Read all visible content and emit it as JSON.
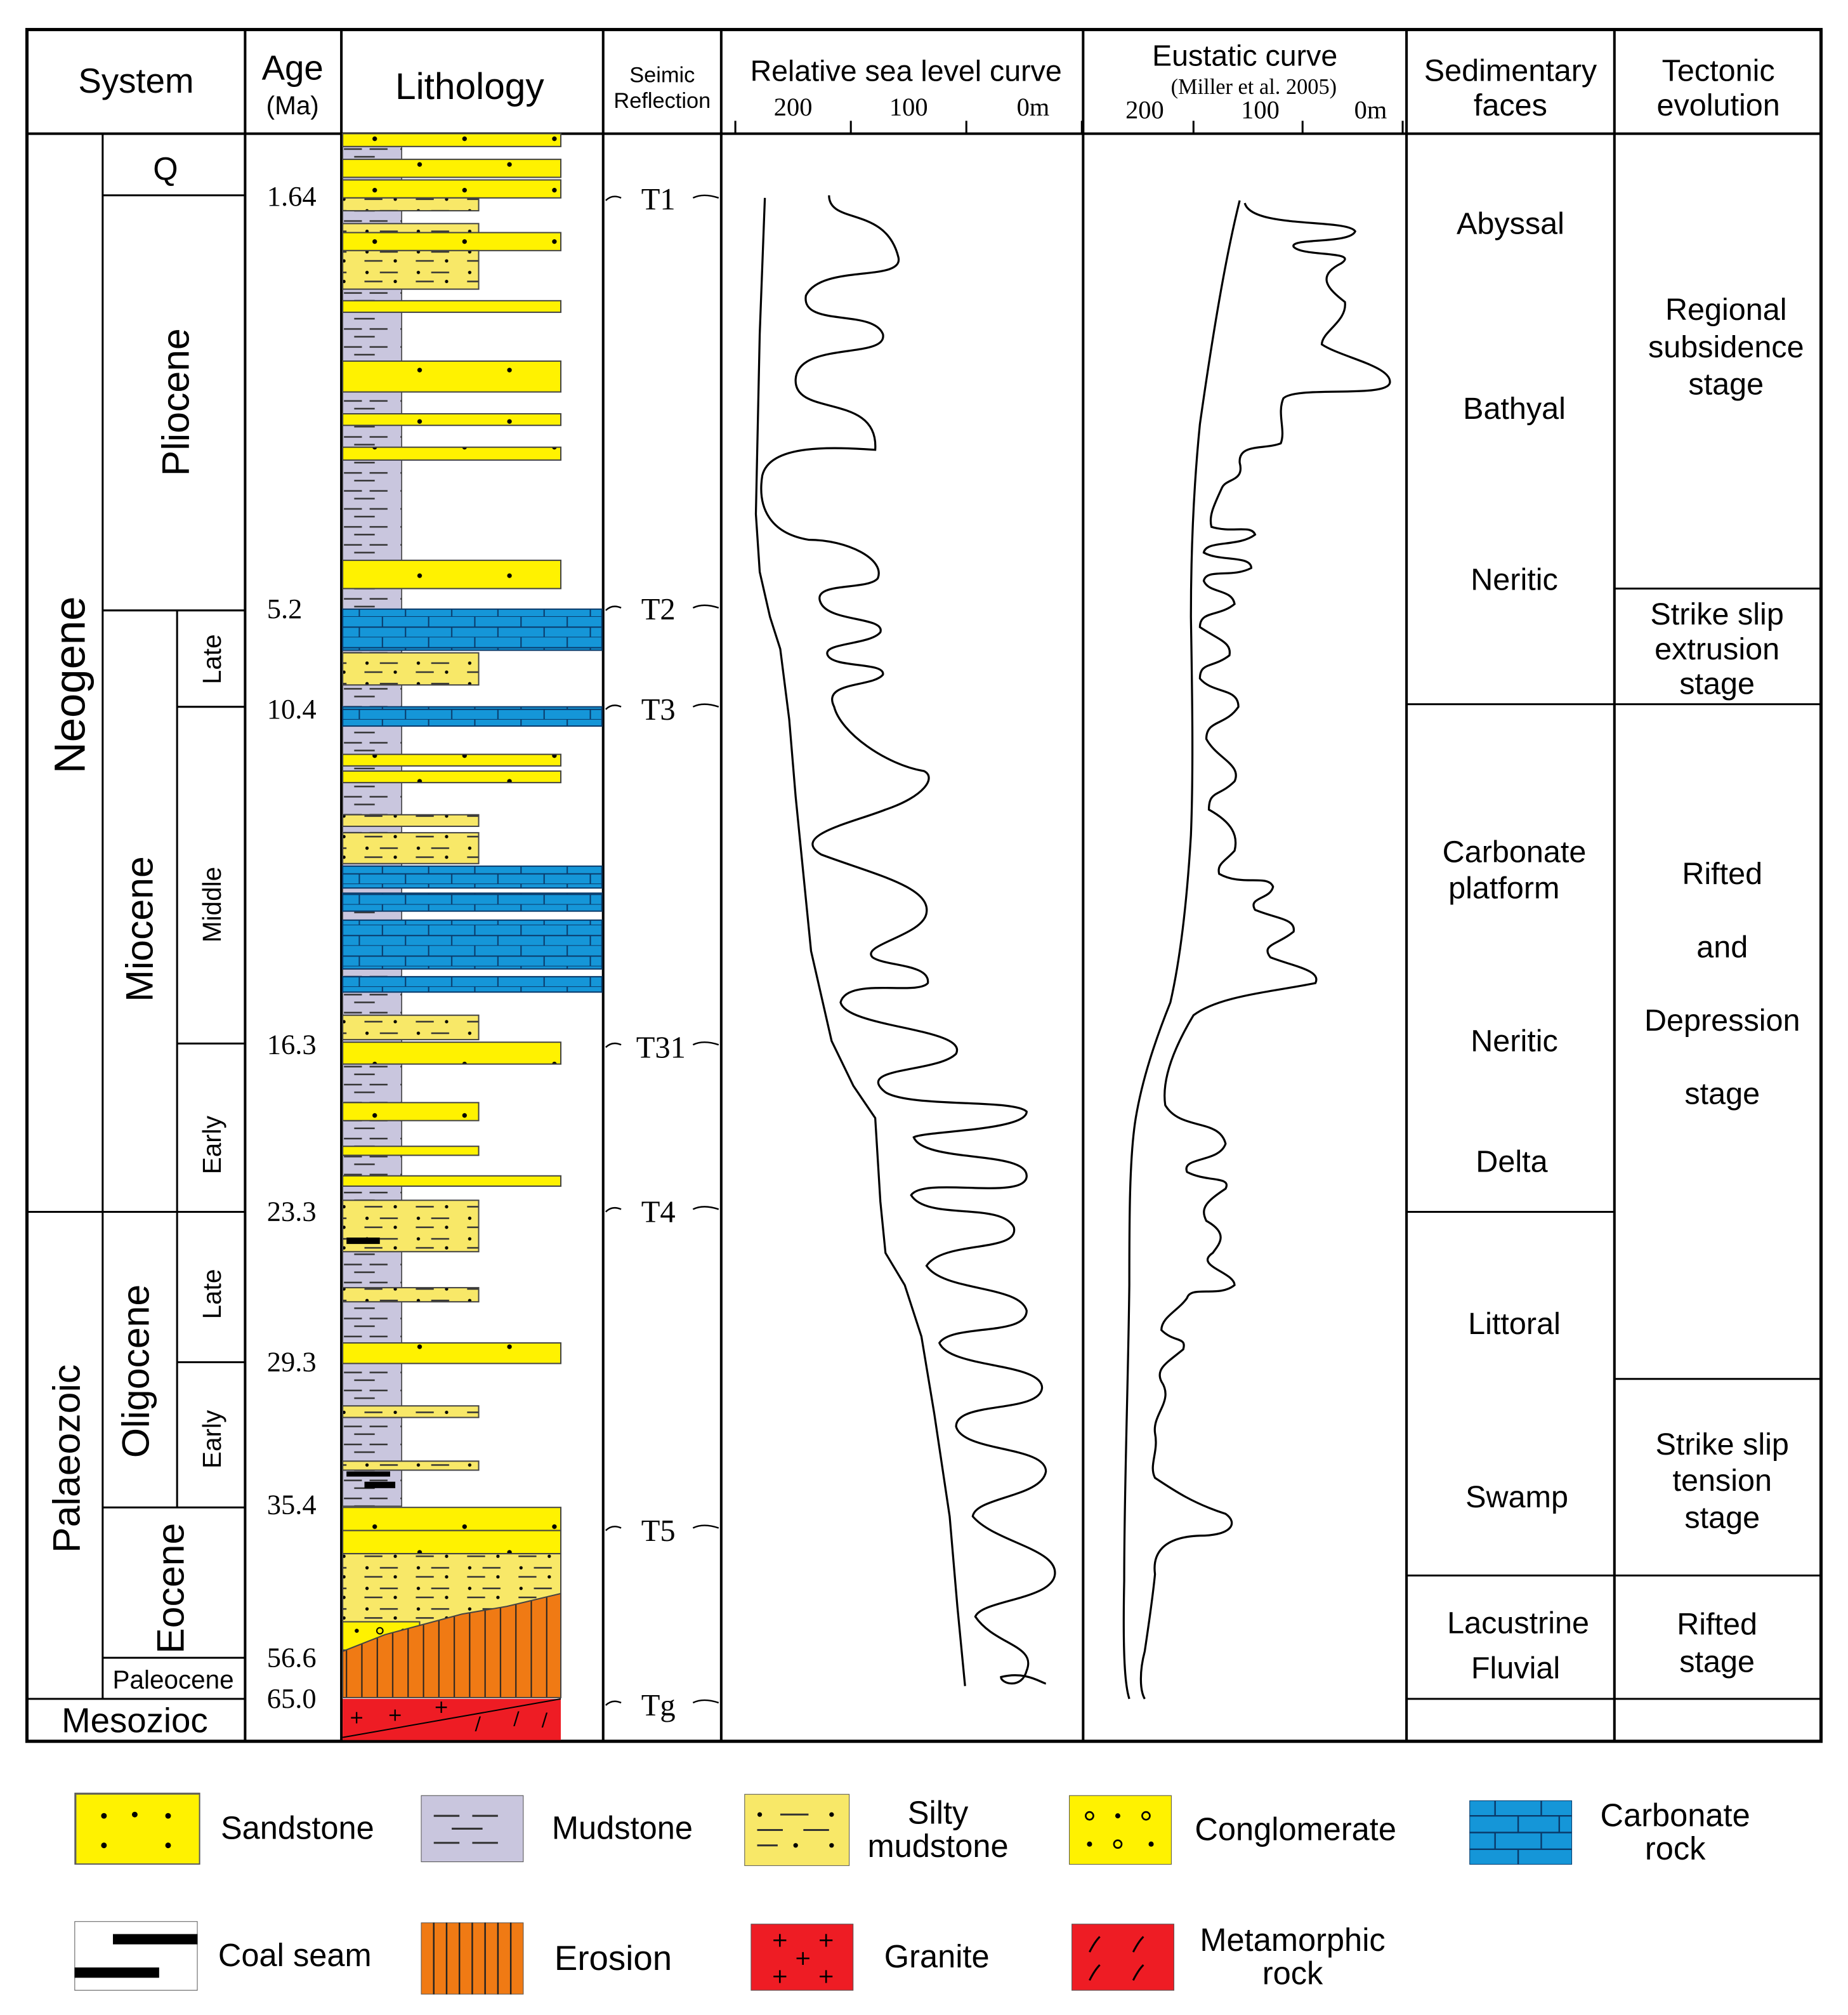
{
  "headers": {
    "system": "System",
    "age_line1": "Age",
    "age_line2": "(Ma)",
    "lithology": "Lithology",
    "seismic_line1": "Seimic",
    "seismic_line2": "Reflection",
    "relative_sea_level": "Relative sea level curve",
    "eustatic_line1": "Eustatic curve",
    "eustatic_line2": "(Miller et al.  2005)",
    "sedimentary_line1": "Sedimentary",
    "sedimentary_line2": "faces",
    "tectonic_line1": "Tectonic",
    "tectonic_line2": "evolution"
  },
  "scale_ticks": {
    "relative": [
      "200",
      "100",
      "0m"
    ],
    "eustatic": [
      "200",
      "100",
      "0m"
    ]
  },
  "systems": {
    "neogene": "Neogene",
    "palaeozoic": "Palaeozoic",
    "mesozoic": "Mesozioc"
  },
  "series": {
    "q": "Q",
    "pliocene": "Pliocene",
    "miocene": "Miocene",
    "oligocene": "Oligocene",
    "eocene": "Eocene",
    "paleocene": "Paleocene"
  },
  "subseries": {
    "miocene_late": "Late",
    "miocene_middle": "Middle",
    "miocene_early": "Early",
    "oligocene_late": "Late",
    "oligocene_early": "Early"
  },
  "ages": [
    "1.64",
    "5.2",
    "10.4",
    "16.3",
    "23.3",
    "29.3",
    "35.4",
    "56.6",
    "65.0"
  ],
  "seismic_reflections": [
    "T1",
    "T2",
    "T3",
    "T31",
    "T4",
    "T5",
    "Tg"
  ],
  "sedimentary_facies": {
    "abyssal": "Abyssal",
    "bathyal": "Bathyal",
    "neritic_upper": "Neritic",
    "carbonate_line1": "Carbonate",
    "carbonate_line2": "platform",
    "neritic_lower": "Neritic",
    "delta": "Delta",
    "littoral": "Littoral",
    "swamp": "Swamp",
    "lacustrine": "Lacustrine",
    "fluvial": "Fluvial"
  },
  "tectonic_stages": {
    "regional_line1": "Regional",
    "regional_line2": "subsidence",
    "regional_line3": "stage",
    "ss_extrusion_line1": "Strike slip",
    "ss_extrusion_line2": "extrusion",
    "ss_extrusion_line3": "stage",
    "rifted_line1": "Rifted",
    "rifted_line2": "and",
    "rifted_line3": "Depression",
    "rifted_line4": "stage",
    "ss_tension_line1": "Strike slip",
    "ss_tension_line2": "tension",
    "ss_tension_line3": "stage",
    "rifted_stage_line1": "Rifted",
    "rifted_stage_line2": "stage"
  },
  "legend": [
    {
      "key": "sandstone",
      "label": "Sandstone"
    },
    {
      "key": "mudstone",
      "label": "Mudstone"
    },
    {
      "key": "silty_mudstone",
      "label": "Silty\nmudstone"
    },
    {
      "key": "conglomerate",
      "label": "Conglomerate"
    },
    {
      "key": "carbonate",
      "label": "Carbonate\nrock"
    },
    {
      "key": "coal_seam",
      "label": "Coal seam"
    },
    {
      "key": "erosion",
      "label": "Erosion"
    },
    {
      "key": "granite",
      "label": "Granite"
    },
    {
      "key": "metamorphic",
      "label": "Metamorphic\nrock"
    }
  ],
  "colors": {
    "sandstone": "#FFF200",
    "mudstone": "#C9C6DE",
    "silty_mudstone": "#F8E868",
    "conglomerate": "#FFF200",
    "carbonate": "#1596D8",
    "erosion": "#F07A14",
    "granite": "#EE1C24",
    "metamorphic": "#EE1C24",
    "line": "#000000"
  }
}
